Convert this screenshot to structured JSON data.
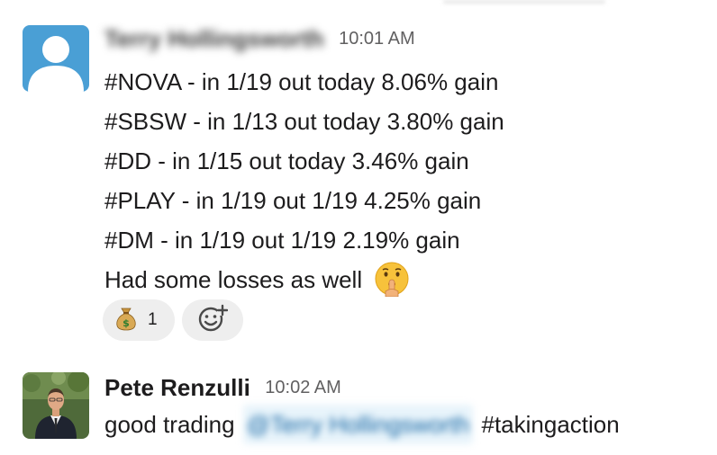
{
  "messages": [
    {
      "sender": "Terry Hollingsworth",
      "sender_blurred": true,
      "timestamp": "10:01 AM",
      "avatar": "default-user-avatar",
      "lines": [
        "#NOVA - in 1/19 out today 8.06% gain",
        "#SBSW - in 1/13 out today 3.80% gain",
        "#DD - in 1/15 out today 3.46% gain",
        "#PLAY - in 1/19 out 1/19 4.25% gain",
        "#DM - in 1/19 out 1/19 2.19% gain",
        "Had some losses as well"
      ],
      "trailing_emoji": "shushing-face-emoji",
      "reactions": [
        {
          "emoji": "money-bag-emoji",
          "count": "1"
        }
      ],
      "add_reaction_icon": "add-reaction-icon"
    },
    {
      "sender": "Pete Renzulli",
      "timestamp": "10:02 AM",
      "avatar": "photo-avatar",
      "text_before": "good trading",
      "mention": "@Terry Hollingsworth",
      "text_after": "#takingaction"
    }
  ],
  "colors": {
    "text": "#1d1c1d",
    "timestamp": "#616061",
    "mention": "#1264a3",
    "mention_bg": "#e8f4fb",
    "reaction_bg": "#eeeeee",
    "default_avatar_bg": "#4a9fd5"
  }
}
